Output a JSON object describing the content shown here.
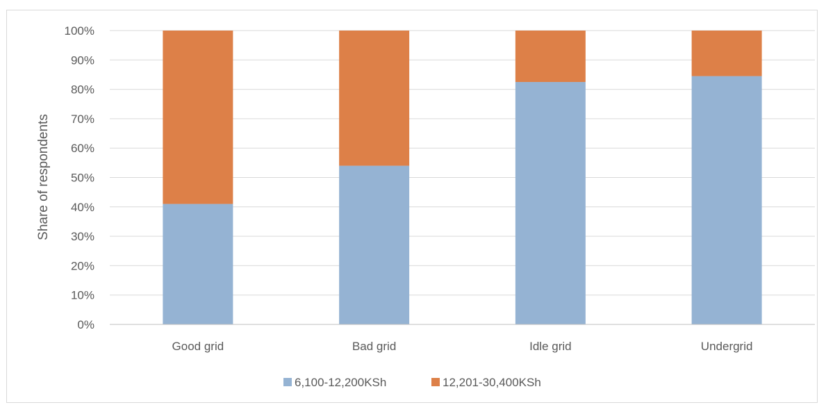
{
  "chart_data": {
    "type": "bar",
    "stacked": true,
    "title": "",
    "xlabel": "",
    "ylabel": "Share of respondents",
    "ylim": [
      0,
      100
    ],
    "y_unit": "%",
    "y_ticks": [
      "0%",
      "10%",
      "20%",
      "30%",
      "40%",
      "50%",
      "60%",
      "70%",
      "80%",
      "90%",
      "100%"
    ],
    "categories": [
      "Good grid",
      "Bad grid",
      "Idle grid",
      "Undergrid"
    ],
    "series": [
      {
        "name": "6,100-12,200KSh",
        "color": "#95b3d3",
        "values": [
          41,
          54,
          82.5,
          84.5
        ]
      },
      {
        "name": "12,201-30,400KSh",
        "color": "#dd8048",
        "values": [
          59,
          46,
          17.5,
          15.5
        ]
      }
    ],
    "grid": true,
    "legend_position": "bottom"
  }
}
